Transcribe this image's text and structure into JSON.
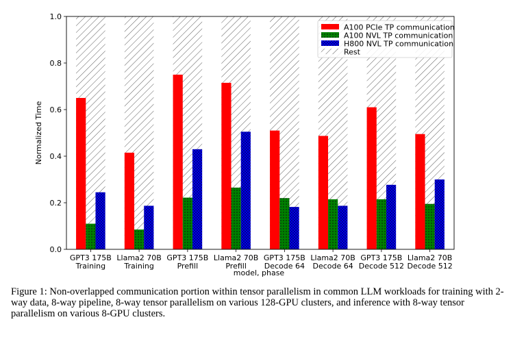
{
  "chart_data": {
    "type": "bar",
    "xlabel": "model, phase",
    "ylabel": "Normalized Time",
    "ylim": [
      0,
      1.0
    ],
    "yticks": [
      "0.0",
      "0.2",
      "0.4",
      "0.6",
      "0.8",
      "1.0"
    ],
    "grid": false,
    "legend_position": "top-right",
    "categories": [
      [
        "GPT3 175B",
        "Training"
      ],
      [
        "Llama2 70B",
        "Training"
      ],
      [
        "GPT3 175B",
        "Prefill"
      ],
      [
        "Llama2 70B",
        "Prefill"
      ],
      [
        "GPT3 175B",
        "Decode 64"
      ],
      [
        "Llama2 70B",
        "Decode 64"
      ],
      [
        "GPT3 175B",
        "Decode 512"
      ],
      [
        "Llama2 70B",
        "Decode 512"
      ]
    ],
    "series": [
      {
        "name": "A100 PCIe TP communication",
        "color": "#ff0000",
        "pattern": "solid",
        "values": [
          0.65,
          0.415,
          0.75,
          0.715,
          0.51,
          0.487,
          0.61,
          0.495
        ]
      },
      {
        "name": "A100 NVL TP communication",
        "color": "#008000",
        "pattern": "dots",
        "values": [
          0.11,
          0.085,
          0.222,
          0.265,
          0.22,
          0.215,
          0.215,
          0.195
        ]
      },
      {
        "name": "H800 NVL TP communication",
        "color": "#0000ff",
        "pattern": "cross",
        "values": [
          0.245,
          0.187,
          0.43,
          0.505,
          0.182,
          0.187,
          0.277,
          0.3
        ]
      },
      {
        "name": "Rest",
        "color": "#ffffff",
        "pattern": "hatch",
        "values": [
          1,
          1,
          1,
          1,
          1,
          1,
          1,
          1
        ]
      }
    ]
  },
  "caption": "Figure 1: Non-overlapped communication portion within tensor parallelism in common LLM workloads for training with 2-way data, 8-way pipeline, 8-way tensor parallelism on various 128-GPU clusters, and inference with 8-way tensor parallelism on various 8-GPU clusters."
}
